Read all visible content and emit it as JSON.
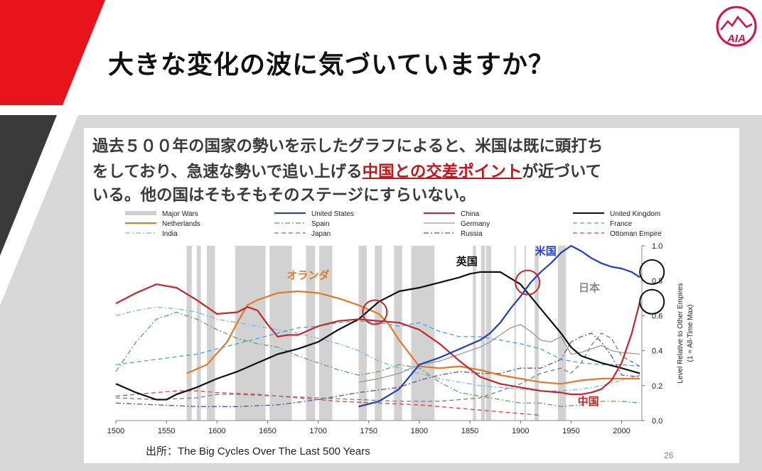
{
  "title": "大きな変化の波に気づいていますか？",
  "description": {
    "line1": "過去５００年の国家の勢いを示したグラフによると、米国は既に頭打ち",
    "line2_before": "をしており、急速な勢いで追い上げる",
    "line2_highlight": "中国との交差ポイント",
    "line2_after": "が近づいて",
    "line3": "いる。他の国はそもそもそのステージにすらいない。"
  },
  "source": "出所：The Big Cycles Over The Last 500 Years",
  "page_number": "26",
  "logo_text": "AIA",
  "colors": {
    "accent_red": "#e8141b",
    "dark_stripe": "#3a3a3a",
    "panel_gray": "#d8d8d8",
    "highlight_red": "#c0171e"
  },
  "chart_data": {
    "type": "line",
    "xlim": [
      1500,
      2020
    ],
    "ylim": [
      0.0,
      1.0
    ],
    "x_ticks": [
      1500,
      1550,
      1600,
      1650,
      1700,
      1750,
      1800,
      1850,
      1900,
      1950,
      2000
    ],
    "y_ticks": [
      "0.0",
      "0.2",
      "0.4",
      "0.6",
      "0.8",
      "1.0"
    ],
    "ylabel_line1": "Level Relative to Other Empires",
    "ylabel_line2": "(1 = All-Time Max)",
    "legend_position": "top",
    "legend": [
      {
        "label": "Major Wars",
        "color": "#cfcfcf",
        "style": "band"
      },
      {
        "label": "United States",
        "color": "#1f3fbf",
        "style": "solid"
      },
      {
        "label": "China",
        "color": "#c0282d",
        "style": "solid"
      },
      {
        "label": "United Kingdom",
        "color": "#111111",
        "style": "solid"
      },
      {
        "label": "Netherlands",
        "color": "#e0792b",
        "style": "solid"
      },
      {
        "label": "Spain",
        "color": "#5aa85a",
        "style": "dashdot"
      },
      {
        "label": "Germany",
        "color": "#9a9a9a",
        "style": "solid"
      },
      {
        "label": "France",
        "color": "#4aa0d8",
        "style": "dashed"
      },
      {
        "label": "India",
        "color": "#7ab8e0",
        "style": "dashdot"
      },
      {
        "label": "Japan",
        "color": "#7a7a7a",
        "style": "dashed"
      },
      {
        "label": "Russia",
        "color": "#6a4a9a",
        "style": "dashdot"
      },
      {
        "label": "Ottoman Empire",
        "color": "#d04a3a",
        "style": "dashed"
      }
    ],
    "war_periods": [
      [
        1570,
        1575
      ],
      [
        1580,
        1584
      ],
      [
        1590,
        1598
      ],
      [
        1618,
        1648
      ],
      [
        1652,
        1674
      ],
      [
        1688,
        1697
      ],
      [
        1701,
        1714
      ],
      [
        1740,
        1748
      ],
      [
        1756,
        1763
      ],
      [
        1775,
        1783
      ],
      [
        1792,
        1815
      ],
      [
        1853,
        1856
      ],
      [
        1861,
        1865
      ],
      [
        1866,
        1871
      ],
      [
        1894,
        1895
      ],
      [
        1904,
        1905
      ],
      [
        1914,
        1918
      ],
      [
        1937,
        1945
      ]
    ],
    "series": [
      {
        "name": "United States",
        "x": [
          1740,
          1760,
          1780,
          1800,
          1820,
          1840,
          1860,
          1870,
          1880,
          1890,
          1900,
          1910,
          1920,
          1930,
          1940,
          1950,
          1960,
          1970,
          1980,
          1990,
          2000,
          2010,
          2018
        ],
        "values": [
          0.08,
          0.11,
          0.18,
          0.32,
          0.36,
          0.41,
          0.46,
          0.5,
          0.56,
          0.64,
          0.71,
          0.79,
          0.85,
          0.9,
          0.96,
          1.0,
          0.97,
          0.93,
          0.9,
          0.88,
          0.87,
          0.85,
          0.82
        ]
      },
      {
        "name": "China",
        "x": [
          1500,
          1520,
          1540,
          1560,
          1580,
          1600,
          1620,
          1630,
          1640,
          1650,
          1660,
          1670,
          1680,
          1700,
          1720,
          1740,
          1760,
          1780,
          1800,
          1820,
          1840,
          1860,
          1880,
          1900,
          1920,
          1940,
          1950,
          1960,
          1970,
          1980,
          1990,
          2000,
          2010,
          2018
        ],
        "values": [
          0.67,
          0.73,
          0.78,
          0.76,
          0.69,
          0.61,
          0.62,
          0.65,
          0.63,
          0.55,
          0.48,
          0.49,
          0.49,
          0.54,
          0.57,
          0.58,
          0.57,
          0.56,
          0.52,
          0.44,
          0.34,
          0.25,
          0.21,
          0.19,
          0.17,
          0.16,
          0.15,
          0.15,
          0.16,
          0.18,
          0.23,
          0.33,
          0.5,
          0.68
        ]
      },
      {
        "name": "United Kingdom",
        "x": [
          1500,
          1520,
          1540,
          1550,
          1560,
          1580,
          1600,
          1620,
          1640,
          1660,
          1680,
          1700,
          1720,
          1740,
          1760,
          1780,
          1800,
          1820,
          1840,
          1850,
          1860,
          1880,
          1900,
          1920,
          1940,
          1950,
          1960,
          1980,
          2000,
          2018
        ],
        "values": [
          0.21,
          0.16,
          0.12,
          0.12,
          0.15,
          0.19,
          0.24,
          0.28,
          0.33,
          0.38,
          0.41,
          0.45,
          0.52,
          0.58,
          0.68,
          0.74,
          0.76,
          0.79,
          0.82,
          0.84,
          0.85,
          0.85,
          0.78,
          0.64,
          0.5,
          0.42,
          0.37,
          0.33,
          0.3,
          0.27
        ]
      },
      {
        "name": "Netherlands",
        "x": [
          1570,
          1590,
          1610,
          1620,
          1630,
          1640,
          1660,
          1680,
          1700,
          1720,
          1740,
          1760,
          1770,
          1780,
          1800,
          1820,
          1840,
          1860,
          1880,
          1900,
          1920,
          1940,
          1960,
          1980,
          2000,
          2018
        ],
        "values": [
          0.27,
          0.32,
          0.45,
          0.56,
          0.66,
          0.69,
          0.73,
          0.74,
          0.73,
          0.7,
          0.66,
          0.61,
          0.55,
          0.46,
          0.31,
          0.3,
          0.31,
          0.29,
          0.26,
          0.24,
          0.22,
          0.21,
          0.23,
          0.24,
          0.24,
          0.24
        ]
      },
      {
        "name": "Spain",
        "x": [
          1500,
          1520,
          1540,
          1560,
          1580,
          1600,
          1620,
          1640,
          1660,
          1680,
          1700,
          1720,
          1740,
          1760,
          1780,
          1800,
          1820,
          1840,
          1860,
          1880,
          1900,
          1920,
          1940,
          1960,
          1980,
          2000,
          2018
        ],
        "values": [
          0.28,
          0.45,
          0.58,
          0.62,
          0.58,
          0.52,
          0.47,
          0.44,
          0.42,
          0.37,
          0.33,
          0.29,
          0.26,
          0.28,
          0.32,
          0.3,
          0.22,
          0.16,
          0.14,
          0.12,
          0.1,
          0.1,
          0.08,
          0.09,
          0.11,
          0.11,
          0.1
        ]
      },
      {
        "name": "Germany",
        "x": [
          1740,
          1760,
          1780,
          1800,
          1820,
          1840,
          1860,
          1870,
          1880,
          1890,
          1900,
          1910,
          1920,
          1930,
          1940,
          1950,
          1960,
          1970,
          1980,
          1990,
          2000,
          2018
        ],
        "values": [
          0.22,
          0.24,
          0.27,
          0.32,
          0.34,
          0.38,
          0.42,
          0.45,
          0.49,
          0.53,
          0.55,
          0.51,
          0.46,
          0.45,
          0.48,
          0.38,
          0.39,
          0.41,
          0.43,
          0.4,
          0.39,
          0.38
        ]
      },
      {
        "name": "France",
        "x": [
          1500,
          1540,
          1580,
          1600,
          1620,
          1640,
          1660,
          1680,
          1700,
          1720,
          1740,
          1760,
          1780,
          1800,
          1820,
          1840,
          1860,
          1880,
          1900,
          1920,
          1940,
          1960,
          1980,
          2000,
          2018
        ],
        "values": [
          0.32,
          0.35,
          0.38,
          0.41,
          0.44,
          0.47,
          0.5,
          0.53,
          0.54,
          0.56,
          0.57,
          0.56,
          0.54,
          0.56,
          0.51,
          0.48,
          0.48,
          0.46,
          0.44,
          0.41,
          0.35,
          0.33,
          0.32,
          0.32,
          0.31
        ]
      },
      {
        "name": "India",
        "x": [
          1500,
          1520,
          1540,
          1560,
          1580,
          1600,
          1620,
          1640,
          1660,
          1680,
          1700,
          1720,
          1740,
          1760,
          1780,
          1800,
          1820,
          1840,
          1860,
          1880,
          1900,
          1920,
          1940,
          1960,
          1980,
          2000,
          2018
        ],
        "values": [
          0.6,
          0.63,
          0.65,
          0.64,
          0.62,
          0.58,
          0.56,
          0.54,
          0.52,
          0.5,
          0.47,
          0.44,
          0.4,
          0.34,
          0.3,
          0.27,
          0.24,
          0.22,
          0.2,
          0.19,
          0.18,
          0.17,
          0.17,
          0.18,
          0.2,
          0.23,
          0.26
        ]
      },
      {
        "name": "Japan",
        "x": [
          1500,
          1540,
          1580,
          1600,
          1620,
          1660,
          1700,
          1740,
          1780,
          1820,
          1860,
          1880,
          1900,
          1920,
          1940,
          1950,
          1960,
          1970,
          1980,
          1990,
          2000,
          2018
        ],
        "values": [
          0.13,
          0.12,
          0.13,
          0.15,
          0.15,
          0.14,
          0.13,
          0.12,
          0.11,
          0.11,
          0.13,
          0.17,
          0.21,
          0.27,
          0.3,
          0.27,
          0.33,
          0.43,
          0.5,
          0.47,
          0.37,
          0.31
        ]
      },
      {
        "name": "Russia",
        "x": [
          1500,
          1540,
          1580,
          1620,
          1660,
          1700,
          1740,
          1780,
          1800,
          1820,
          1840,
          1860,
          1880,
          1900,
          1920,
          1940,
          1950,
          1960,
          1970,
          1980,
          1990,
          2000,
          2018
        ],
        "values": [
          0.1,
          0.09,
          0.08,
          0.08,
          0.09,
          0.12,
          0.16,
          0.19,
          0.23,
          0.26,
          0.28,
          0.27,
          0.27,
          0.3,
          0.3,
          0.35,
          0.45,
          0.48,
          0.5,
          0.45,
          0.37,
          0.26,
          0.25
        ]
      },
      {
        "name": "Ottoman Empire",
        "x": [
          1500,
          1540,
          1560,
          1580,
          1600,
          1640,
          1680,
          1720,
          1760,
          1800,
          1840,
          1880,
          1900,
          1920
        ],
        "values": [
          0.14,
          0.16,
          0.17,
          0.17,
          0.16,
          0.15,
          0.13,
          0.11,
          0.1,
          0.09,
          0.07,
          0.05,
          0.04,
          0.03
        ]
      }
    ],
    "annotations": [
      {
        "text": "オランダ",
        "x": 1690,
        "y": 0.81,
        "color": "#e0792b"
      },
      {
        "text": "英国",
        "x": 1847,
        "y": 0.89,
        "color": "#111111"
      },
      {
        "text": "米国",
        "x": 1925,
        "y": 0.95,
        "color": "#1f3fbf"
      },
      {
        "text": "日本",
        "x": 1968,
        "y": 0.74,
        "color": "#8a8a8a"
      },
      {
        "text": "中国",
        "x": 1967,
        "y": 0.09,
        "color": "#c0282d"
      }
    ],
    "circles": [
      {
        "x": 1756,
        "y": 0.62,
        "color": "#c0282d"
      },
      {
        "x": 1907,
        "y": 0.79,
        "color": "#c0282d"
      },
      {
        "x": 2030,
        "y": 0.85,
        "color": "#111111"
      },
      {
        "x": 2030,
        "y": 0.68,
        "color": "#111111"
      }
    ]
  }
}
